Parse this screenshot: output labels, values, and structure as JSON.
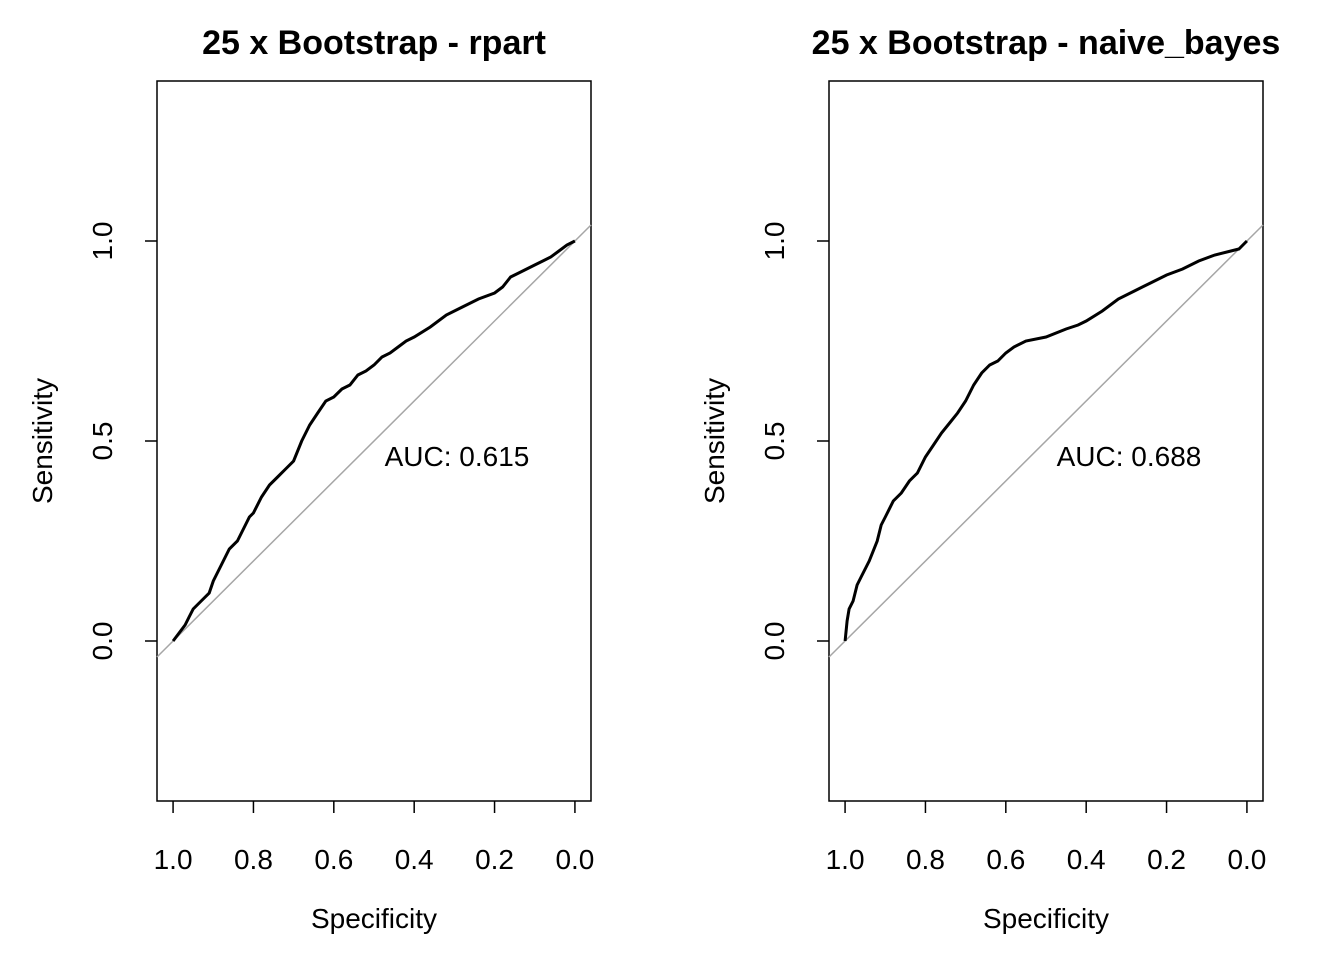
{
  "chart_data": [
    {
      "type": "line",
      "title": "25 x Bootstrap - rpart",
      "xlabel": "Specificity",
      "ylabel": "Sensitivity",
      "xlim": [
        1.04,
        -0.04
      ],
      "ylim": [
        -0.4,
        1.4
      ],
      "x_ticks": [
        "1.0",
        "0.8",
        "0.6",
        "0.4",
        "0.2",
        "0.0"
      ],
      "y_ticks": [
        "0.0",
        "0.5",
        "1.0"
      ],
      "annotation": "AUC: 0.615",
      "series": [
        {
          "x": [
            1.0,
            0.97,
            0.96,
            0.95,
            0.93,
            0.91,
            0.9,
            0.88,
            0.86,
            0.84,
            0.82,
            0.81,
            0.8,
            0.78,
            0.76,
            0.74,
            0.72,
            0.7,
            0.68,
            0.66,
            0.64,
            0.62,
            0.6,
            0.58,
            0.56,
            0.54,
            0.52,
            0.5,
            0.48,
            0.46,
            0.44,
            0.42,
            0.4,
            0.36,
            0.32,
            0.28,
            0.24,
            0.2,
            0.18,
            0.16,
            0.14,
            0.12,
            0.1,
            0.08,
            0.06,
            0.04,
            0.02,
            0.0
          ],
          "y": [
            0.0,
            0.04,
            0.06,
            0.08,
            0.1,
            0.12,
            0.15,
            0.19,
            0.23,
            0.25,
            0.29,
            0.31,
            0.32,
            0.36,
            0.39,
            0.41,
            0.43,
            0.45,
            0.5,
            0.54,
            0.57,
            0.6,
            0.61,
            0.63,
            0.64,
            0.665,
            0.675,
            0.69,
            0.71,
            0.72,
            0.735,
            0.75,
            0.76,
            0.785,
            0.815,
            0.835,
            0.855,
            0.87,
            0.885,
            0.91,
            0.92,
            0.93,
            0.94,
            0.95,
            0.96,
            0.975,
            0.99,
            1.0
          ]
        }
      ]
    },
    {
      "type": "line",
      "title": "25 x Bootstrap - naive_bayes",
      "xlabel": "Specificity",
      "ylabel": "Sensitivity",
      "xlim": [
        1.04,
        -0.04
      ],
      "ylim": [
        -0.4,
        1.4
      ],
      "x_ticks": [
        "1.0",
        "0.8",
        "0.6",
        "0.4",
        "0.2",
        "0.0"
      ],
      "y_ticks": [
        "0.0",
        "0.5",
        "1.0"
      ],
      "annotation": "AUC: 0.688",
      "series": [
        {
          "x": [
            1.0,
            0.995,
            0.99,
            0.98,
            0.97,
            0.96,
            0.94,
            0.92,
            0.91,
            0.9,
            0.88,
            0.86,
            0.84,
            0.82,
            0.8,
            0.78,
            0.76,
            0.74,
            0.72,
            0.7,
            0.68,
            0.66,
            0.64,
            0.62,
            0.6,
            0.58,
            0.55,
            0.5,
            0.45,
            0.42,
            0.4,
            0.36,
            0.32,
            0.28,
            0.24,
            0.2,
            0.16,
            0.12,
            0.08,
            0.04,
            0.02,
            0.0
          ],
          "y": [
            0.0,
            0.05,
            0.08,
            0.1,
            0.14,
            0.16,
            0.2,
            0.25,
            0.29,
            0.31,
            0.35,
            0.37,
            0.4,
            0.42,
            0.46,
            0.49,
            0.52,
            0.545,
            0.57,
            0.6,
            0.64,
            0.67,
            0.69,
            0.7,
            0.72,
            0.735,
            0.75,
            0.76,
            0.78,
            0.79,
            0.8,
            0.825,
            0.855,
            0.875,
            0.895,
            0.915,
            0.93,
            0.95,
            0.965,
            0.975,
            0.98,
            1.0
          ]
        }
      ]
    }
  ]
}
